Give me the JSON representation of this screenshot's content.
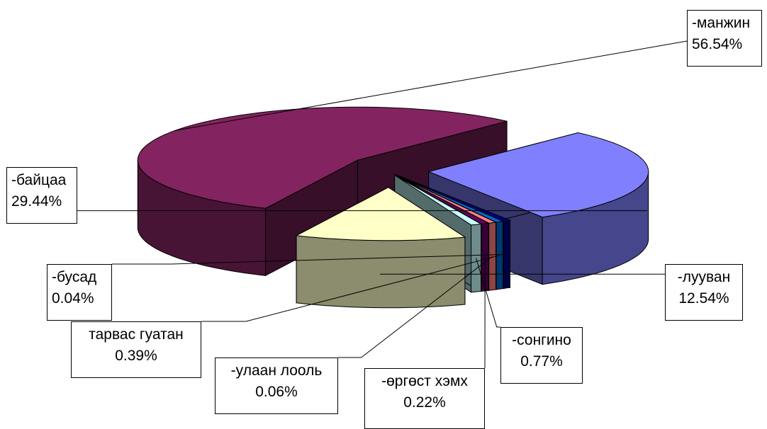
{
  "chart_data": {
    "type": "pie",
    "style": "3d-exploded",
    "slices": [
      {
        "name": "-манжин",
        "value": 56.54,
        "label": "56.54%",
        "color": "#832460"
      },
      {
        "name": "-лууван",
        "value": 12.54,
        "label": "12.54%",
        "color": "#FFFFC8"
      },
      {
        "name": "-сонгино",
        "value": 0.77,
        "label": "0.77%",
        "color": "#C8FFFF"
      },
      {
        "name": "-өргөст хэмх",
        "value": 0.22,
        "label": "0.22%",
        "color": "#660066"
      },
      {
        "name": "-улаан лооль",
        "value": 0.06,
        "label": "0.06%",
        "color": "#FF8080"
      },
      {
        "name": "тарвас гуатан",
        "value": 0.39,
        "label": "0.39%",
        "color": "#0066CC"
      },
      {
        "name": "-бусад",
        "value": 0.04,
        "label": "0.04%",
        "color": "#000080"
      },
      {
        "name": "-байцаа",
        "value": 29.44,
        "label": "29.44%",
        "color": "#8080FF"
      }
    ]
  }
}
